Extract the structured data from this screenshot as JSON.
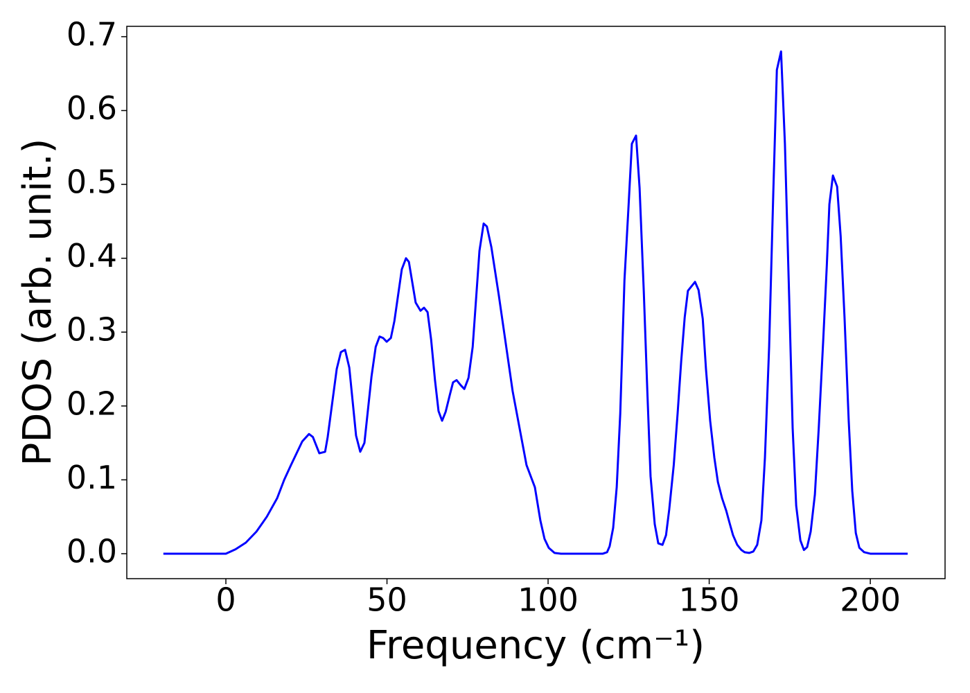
{
  "chart_data": {
    "type": "line",
    "xlabel": "Frequency (cm⁻¹)",
    "ylabel": "PDOS (arb. unit.)",
    "x": [
      -19.4,
      -10,
      -5,
      0,
      3,
      6.2,
      9.5,
      12.7,
      15.9,
      18.1,
      20.2,
      23.7,
      25.8,
      27,
      29,
      30.8,
      31.6,
      34.4,
      35.7,
      37,
      38.3,
      40.4,
      41.7,
      43,
      45.2,
      46.5,
      47.7,
      48.8,
      49.9,
      51.2,
      52.3,
      54.6,
      55.9,
      56.8,
      58.9,
      60.4,
      61.5,
      62.6,
      63.7,
      64.9,
      66,
      67.1,
      68.2,
      69.5,
      70.5,
      71.6,
      72.9,
      74,
      75.3,
      76.6,
      78.7,
      80,
      81,
      82.4,
      84.7,
      89,
      93.3,
      95.9,
      97.6,
      98.9,
      100.2,
      102,
      104,
      117,
      118.3,
      119.1,
      120.2,
      121.3,
      122.4,
      123.7,
      124.9,
      126,
      127.3,
      128.4,
      129.7,
      130.8,
      131.8,
      133.1,
      134.2,
      135.5,
      136.6,
      137.6,
      139,
      140.2,
      141.3,
      142.4,
      143.4,
      145.6,
      146.7,
      148,
      149,
      150.3,
      151.6,
      152.7,
      154,
      155.3,
      156.3,
      157.4,
      158.7,
      160,
      161,
      162.4,
      163.7,
      164.9,
      166.2,
      167.3,
      168.6,
      169.9,
      171,
      172.3,
      173.5,
      174.8,
      175.9,
      177,
      178.3,
      179.4,
      180.4,
      181.5,
      182.8,
      184,
      185.4,
      186.5,
      187.3,
      188.4,
      189.7,
      190.8,
      192,
      193.3,
      194.4,
      195.5,
      196.6,
      198.1,
      200,
      211.6
    ],
    "series": [
      {
        "name": "PDOS",
        "color": "#0000ff",
        "values": [
          0,
          0,
          0,
          0,
          0.006,
          0.015,
          0.03,
          0.05,
          0.075,
          0.1,
          0.12,
          0.152,
          0.162,
          0.158,
          0.136,
          0.138,
          0.158,
          0.25,
          0.273,
          0.276,
          0.252,
          0.16,
          0.138,
          0.15,
          0.24,
          0.28,
          0.294,
          0.292,
          0.287,
          0.292,
          0.315,
          0.385,
          0.4,
          0.395,
          0.34,
          0.329,
          0.333,
          0.327,
          0.29,
          0.235,
          0.193,
          0.18,
          0.192,
          0.215,
          0.232,
          0.235,
          0.228,
          0.223,
          0.238,
          0.28,
          0.41,
          0.447,
          0.443,
          0.415,
          0.35,
          0.22,
          0.12,
          0.09,
          0.045,
          0.02,
          0.008,
          0.001,
          0,
          0,
          0.002,
          0.01,
          0.035,
          0.09,
          0.19,
          0.37,
          0.465,
          0.555,
          0.566,
          0.495,
          0.355,
          0.22,
          0.105,
          0.04,
          0.014,
          0.012,
          0.025,
          0.06,
          0.12,
          0.19,
          0.26,
          0.32,
          0.356,
          0.368,
          0.357,
          0.318,
          0.25,
          0.18,
          0.13,
          0.097,
          0.075,
          0.058,
          0.042,
          0.025,
          0.012,
          0.005,
          0.002,
          0.001,
          0.003,
          0.012,
          0.045,
          0.13,
          0.28,
          0.49,
          0.655,
          0.68,
          0.555,
          0.35,
          0.17,
          0.065,
          0.018,
          0.005,
          0.009,
          0.03,
          0.08,
          0.17,
          0.29,
          0.39,
          0.473,
          0.512,
          0.497,
          0.43,
          0.32,
          0.18,
          0.085,
          0.028,
          0.008,
          0.002,
          0,
          0
        ]
      }
    ],
    "xlim": [
      -30.75,
      223.2
    ],
    "ylim": [
      -0.0338,
      0.714
    ],
    "xticks": [
      0,
      50,
      100,
      150,
      200
    ],
    "yticks": [
      {
        "value": 0,
        "label": "0.0"
      },
      0.1,
      0.2,
      0.3,
      0.4,
      0.5,
      0.6,
      0.7
    ]
  }
}
